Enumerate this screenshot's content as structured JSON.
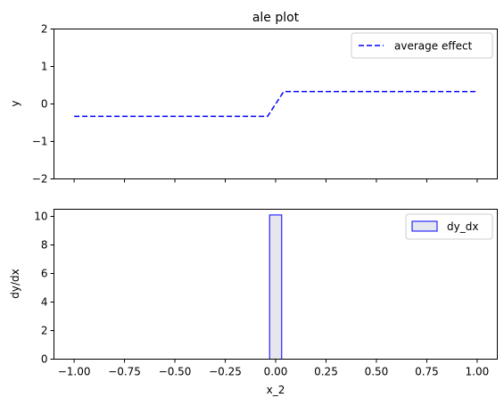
{
  "chart_data": [
    {
      "type": "line",
      "title": "ale plot",
      "xlabel": "",
      "ylabel": "y",
      "xlim": [
        -1.1,
        1.1
      ],
      "ylim": [
        -2,
        2
      ],
      "yticks": [
        -2,
        -1,
        0,
        1,
        2
      ],
      "ytick_labels": [
        "−2",
        "−1",
        "0",
        "1",
        "2"
      ],
      "xticks": [
        -1.0,
        -0.75,
        -0.5,
        -0.25,
        0.0,
        0.25,
        0.5,
        0.75,
        1.0
      ],
      "show_xtick_labels": false,
      "grid": false,
      "legend_position": "top-right",
      "series": [
        {
          "name": "average effect",
          "color": "#0000ff",
          "style": "dashed",
          "x": [
            -1.0,
            -0.04,
            0.04,
            1.0
          ],
          "y": [
            -0.33,
            -0.33,
            0.33,
            0.33
          ]
        }
      ]
    },
    {
      "type": "bar",
      "title": "",
      "xlabel": "x_2",
      "ylabel": "dy/dx",
      "xlim": [
        -1.1,
        1.1
      ],
      "ylim": [
        0,
        10.5
      ],
      "yticks": [
        0,
        2,
        4,
        6,
        8,
        10
      ],
      "ytick_labels": [
        "0",
        "2",
        "4",
        "6",
        "8",
        "10"
      ],
      "xticks": [
        -1.0,
        -0.75,
        -0.5,
        -0.25,
        0.0,
        0.25,
        0.5,
        0.75,
        1.0
      ],
      "xtick_labels": [
        "−1.00",
        "−0.75",
        "−0.50",
        "−0.25",
        "0.00",
        "0.25",
        "0.50",
        "0.75",
        "1.00"
      ],
      "grid": false,
      "legend_position": "top-right",
      "series": [
        {
          "name": "dy_dx",
          "edge_color": "#0000ff",
          "fill_color": "#e6e6ee",
          "bars": [
            {
              "x0": -0.03,
              "x1": 0.03,
              "value": 10.1
            }
          ]
        }
      ]
    }
  ]
}
